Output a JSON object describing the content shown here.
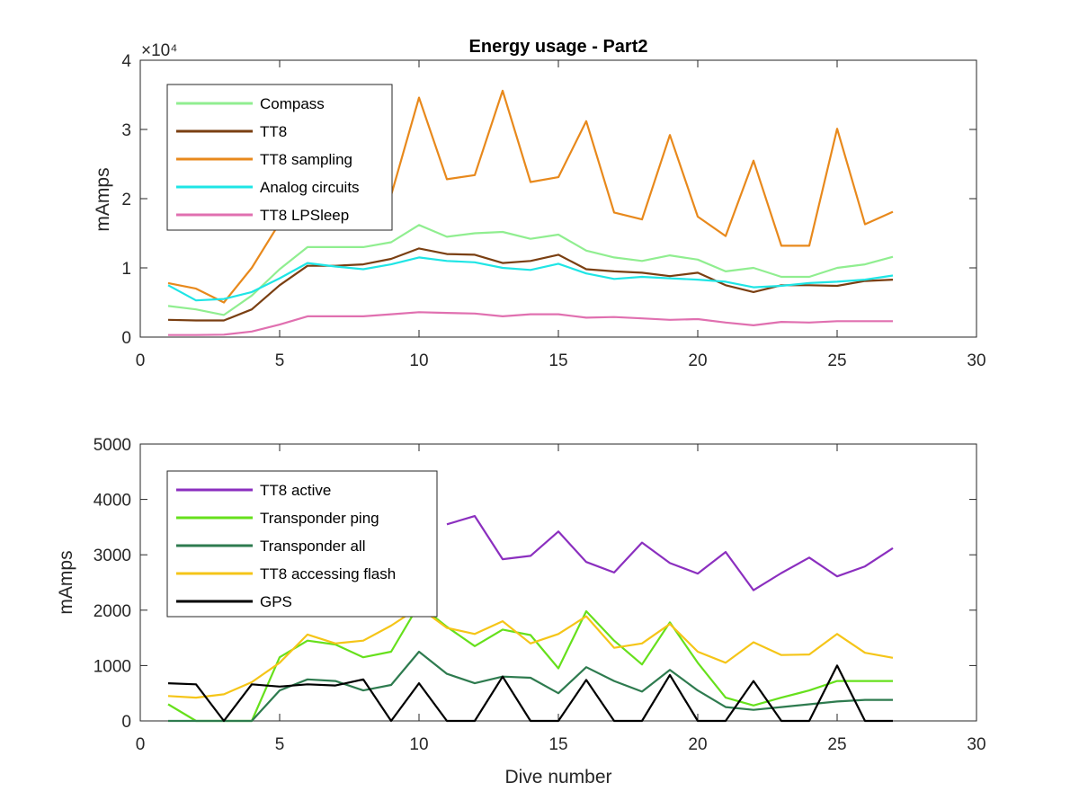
{
  "chart_data": [
    {
      "type": "line",
      "title": "Energy usage - Part2",
      "xlabel": "",
      "ylabel": "mAmps",
      "exponent_label": "×10⁴",
      "xlim": [
        0,
        30
      ],
      "ylim": [
        0,
        40000
      ],
      "x_ticks": [
        0,
        5,
        10,
        15,
        20,
        25,
        30
      ],
      "y_ticks": [
        0,
        10000,
        20000,
        30000,
        40000
      ],
      "y_tick_labels": [
        "0",
        "1",
        "2",
        "3",
        "4"
      ],
      "legend_position": "top-left",
      "x": [
        1,
        2,
        3,
        4,
        5,
        6,
        7,
        8,
        9,
        10,
        11,
        12,
        13,
        14,
        15,
        16,
        17,
        18,
        19,
        20,
        21,
        22,
        23,
        24,
        25,
        26,
        27
      ],
      "series": [
        {
          "name": "Compass",
          "color": "#90ee90",
          "values": [
            4500,
            4000,
            3200,
            6000,
            9800,
            13000,
            13000,
            13000,
            13700,
            16200,
            14500,
            15000,
            15200,
            14200,
            14800,
            12500,
            11500,
            11000,
            11800,
            11200,
            9500,
            10000,
            8700,
            8700,
            10000,
            10500,
            11600
          ]
        },
        {
          "name": "TT8",
          "color": "#7a3f12",
          "values": [
            2500,
            2400,
            2400,
            4000,
            7500,
            10300,
            10300,
            10500,
            11300,
            12800,
            12000,
            11900,
            10700,
            11000,
            11900,
            9800,
            9500,
            9300,
            8800,
            9300,
            7500,
            6500,
            7500,
            7500,
            7400,
            8100,
            8300
          ]
        },
        {
          "name": "TT8 sampling",
          "color": "#e8891c",
          "values": [
            7800,
            7000,
            5000,
            10000,
            16500,
            17000,
            18000,
            19000,
            20500,
            34600,
            22800,
            23400,
            35600,
            22400,
            23100,
            31200,
            18000,
            17000,
            29200,
            17400,
            14600,
            25500,
            13200,
            13200,
            30100,
            16300,
            18100
          ]
        },
        {
          "name": "Analog circuits",
          "color": "#1fe5e5",
          "values": [
            7500,
            5300,
            5500,
            6500,
            8500,
            10700,
            10200,
            9800,
            10500,
            11500,
            11000,
            10800,
            10000,
            9700,
            10600,
            9200,
            8400,
            8700,
            8500,
            8300,
            8000,
            7200,
            7400,
            7800,
            8000,
            8300,
            8900
          ]
        },
        {
          "name": "TT8 LPSleep",
          "color": "#e070b0",
          "values": [
            300,
            300,
            350,
            800,
            1800,
            3000,
            3000,
            3000,
            3300,
            3600,
            3500,
            3400,
            3000,
            3300,
            3300,
            2800,
            2900,
            2700,
            2500,
            2600,
            2100,
            1700,
            2200,
            2100,
            2300,
            2300,
            2300
          ]
        }
      ]
    },
    {
      "type": "line",
      "title": "",
      "xlabel": "Dive number",
      "ylabel": "mAmps",
      "xlim": [
        0,
        30
      ],
      "ylim": [
        0,
        5000
      ],
      "x_ticks": [
        0,
        5,
        10,
        15,
        20,
        25,
        30
      ],
      "y_ticks": [
        0,
        1000,
        2000,
        3000,
        4000,
        5000
      ],
      "y_tick_labels": [
        "0",
        "1000",
        "2000",
        "3000",
        "4000",
        "5000"
      ],
      "legend_position": "top-left",
      "x": [
        1,
        2,
        3,
        4,
        5,
        6,
        7,
        8,
        9,
        10,
        11,
        12,
        13,
        14,
        15,
        16,
        17,
        18,
        19,
        20,
        21,
        22,
        23,
        24,
        25,
        26,
        27
      ],
      "series": [
        {
          "name": "TT8 active",
          "color": "#8b2fbf",
          "values": [
            null,
            null,
            null,
            null,
            null,
            null,
            null,
            null,
            null,
            null,
            3550,
            3700,
            2920,
            2980,
            3420,
            2870,
            2680,
            3220,
            2850,
            2660,
            3050,
            2360,
            2670,
            2950,
            2610,
            2790,
            3120
          ]
        },
        {
          "name": "Transponder ping",
          "color": "#66e01c",
          "values": [
            300,
            0,
            0,
            0,
            1150,
            1450,
            1380,
            1150,
            1250,
            2100,
            1700,
            1350,
            1650,
            1550,
            950,
            1980,
            1450,
            1020,
            1780,
            1050,
            420,
            280,
            420,
            550,
            720,
            720,
            720
          ]
        },
        {
          "name": "Transponder all",
          "color": "#2e7b4f",
          "values": [
            0,
            0,
            0,
            0,
            550,
            750,
            720,
            550,
            650,
            1250,
            850,
            680,
            800,
            780,
            500,
            970,
            720,
            530,
            920,
            550,
            250,
            200,
            250,
            300,
            350,
            380,
            380
          ]
        },
        {
          "name": "TT8 accessing flash",
          "color": "#f5c518",
          "values": [
            450,
            420,
            480,
            700,
            1050,
            1560,
            1400,
            1450,
            1720,
            2050,
            1680,
            1570,
            1800,
            1400,
            1570,
            1890,
            1320,
            1400,
            1750,
            1250,
            1050,
            1420,
            1190,
            1200,
            1570,
            1230,
            1140
          ]
        },
        {
          "name": "GPS",
          "color": "#000000",
          "values": [
            680,
            660,
            0,
            660,
            620,
            660,
            640,
            750,
            0,
            680,
            0,
            0,
            800,
            0,
            0,
            740,
            0,
            0,
            830,
            0,
            0,
            720,
            0,
            0,
            1000,
            0,
            0
          ]
        }
      ]
    }
  ]
}
